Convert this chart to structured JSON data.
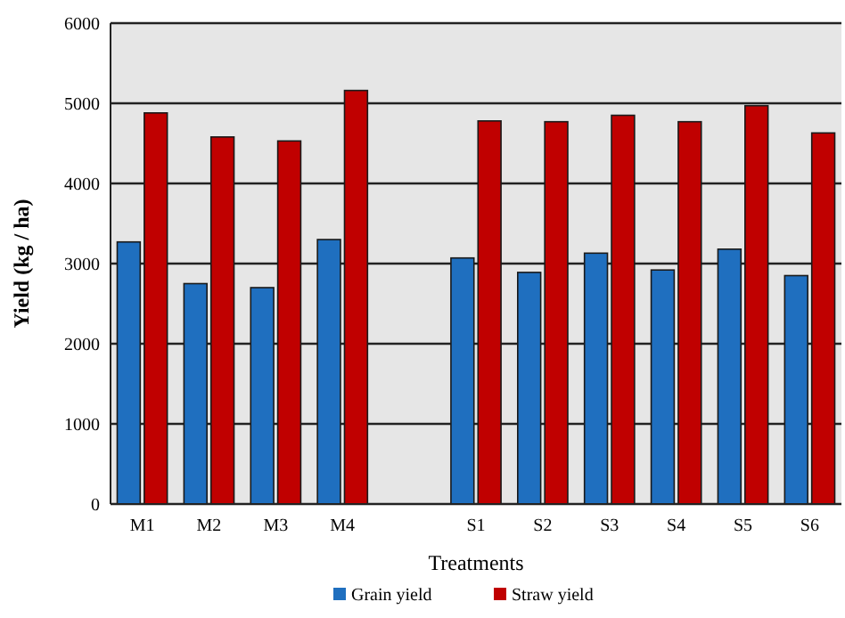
{
  "chart_data": {
    "type": "bar",
    "xlabel": "Treatments",
    "ylabel": "Yield (kg / ha)",
    "categories": [
      "M1",
      "M2",
      "M3",
      "M4",
      null,
      "S1",
      "S2",
      "S3",
      "S4",
      "S5",
      "S6"
    ],
    "series": [
      {
        "name": "Grain yield",
        "color": "#1f6fbf",
        "values": [
          3270,
          2750,
          2700,
          3300,
          null,
          3070,
          2890,
          3130,
          2920,
          3180,
          2850
        ]
      },
      {
        "name": "Straw yield",
        "color": "#c00000",
        "values": [
          4880,
          4580,
          4530,
          5160,
          null,
          4780,
          4770,
          4850,
          4770,
          4970,
          4630
        ]
      }
    ],
    "ylim": [
      0,
      6000
    ],
    "yticks": [
      0,
      1000,
      2000,
      3000,
      4000,
      5000,
      6000
    ],
    "grid": "y",
    "legend": "bottom"
  }
}
